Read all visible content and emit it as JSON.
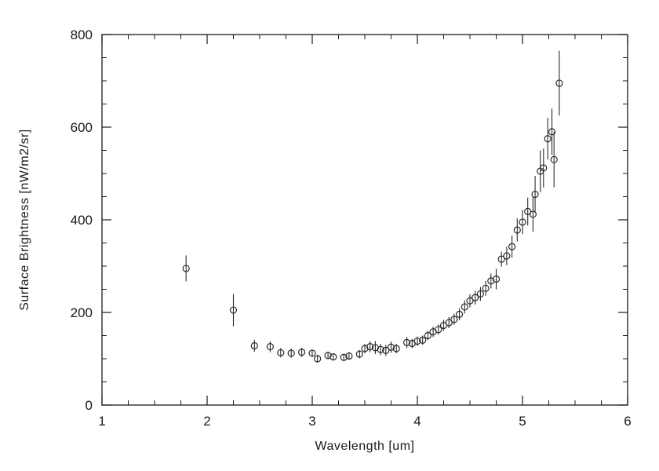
{
  "figure": {
    "background": "#ffffff",
    "axis_color": "#1a1a1a",
    "marker_color": "#2a2a2a"
  },
  "chart_data": {
    "type": "scatter",
    "title": "",
    "xlabel": "Wavelength [um]",
    "ylabel": "Surface Brightness [nW/m2/sr]",
    "xlim": [
      1,
      6
    ],
    "ylim": [
      0,
      800
    ],
    "x_ticks": [
      1,
      2,
      3,
      4,
      5,
      6
    ],
    "y_ticks": [
      0,
      200,
      400,
      600,
      800
    ],
    "x_minor_step": 0.25,
    "y_minor_step": 50,
    "grid": false,
    "legend": "none",
    "marker": "open-circle",
    "error_bars": true,
    "series": [
      {
        "name": "surface-brightness",
        "x": [
          1.8,
          2.25,
          2.45,
          2.6,
          2.7,
          2.8,
          2.9,
          3.0,
          3.05,
          3.15,
          3.2,
          3.3,
          3.35,
          3.45,
          3.5,
          3.55,
          3.6,
          3.65,
          3.7,
          3.75,
          3.8,
          3.9,
          3.95,
          4.0,
          4.05,
          4.1,
          4.15,
          4.2,
          4.25,
          4.3,
          4.35,
          4.4,
          4.45,
          4.5,
          4.55,
          4.6,
          4.65,
          4.7,
          4.75,
          4.8,
          4.85,
          4.9,
          4.95,
          5.0,
          5.05,
          5.1,
          5.12,
          5.17,
          5.2,
          5.24,
          5.28,
          5.3,
          5.35
        ],
        "y": [
          295,
          205,
          128,
          126,
          113,
          112,
          114,
          112,
          100,
          107,
          104,
          103,
          106,
          110,
          122,
          126,
          124,
          120,
          118,
          125,
          122,
          135,
          133,
          138,
          140,
          150,
          158,
          163,
          172,
          178,
          185,
          196,
          212,
          225,
          232,
          240,
          252,
          268,
          272,
          315,
          322,
          342,
          378,
          395,
          418,
          412,
          455,
          505,
          512,
          575,
          590,
          530,
          695
        ],
        "yerr": [
          28,
          35,
          13,
          12,
          10,
          10,
          10,
          8,
          8,
          8,
          7,
          7,
          8,
          9,
          10,
          12,
          14,
          12,
          12,
          12,
          10,
          12,
          10,
          10,
          10,
          10,
          11,
          11,
          12,
          12,
          12,
          13,
          14,
          14,
          15,
          15,
          16,
          16,
          22,
          16,
          20,
          24,
          25,
          26,
          30,
          38,
          40,
          45,
          42,
          45,
          50,
          60,
          70
        ]
      }
    ]
  }
}
